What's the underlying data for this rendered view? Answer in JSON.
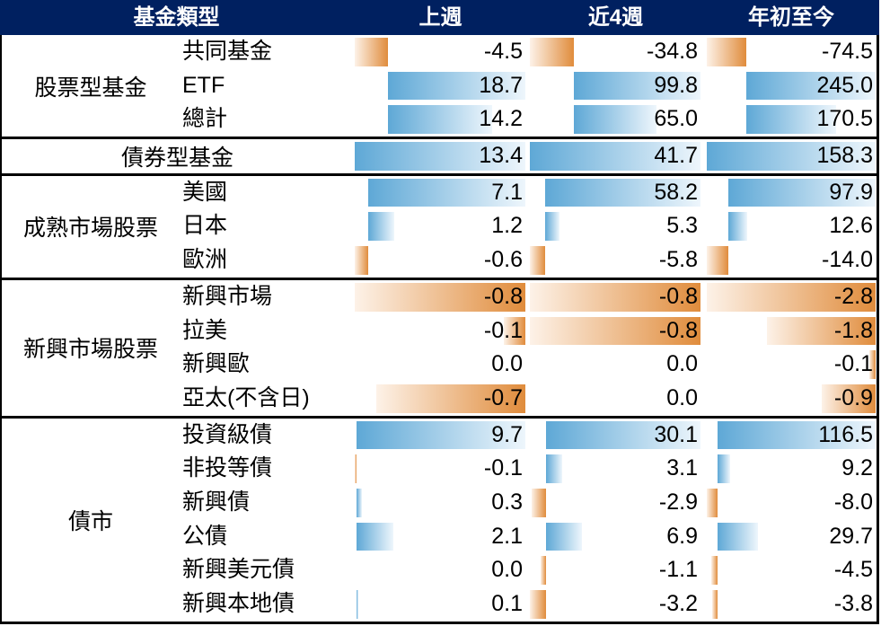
{
  "header": {
    "fund_type": "基金類型"
  },
  "colors": {
    "header_bg": "#002060",
    "header_text": "#ffffff",
    "positive_bar": "#5ea8d6",
    "negative_bar": "#e08c3c",
    "border": "#000000"
  },
  "chart_data": {
    "type": "table",
    "columns": [
      "上週",
      "近4週",
      "年初至今"
    ],
    "groups": [
      {
        "name": "股票型基金",
        "rows": [
          {
            "label": "共同基金",
            "values": [
              "-4.5",
              "-34.8",
              "-74.5"
            ]
          },
          {
            "label": "ETF",
            "values": [
              "18.7",
              "99.8",
              "245.0"
            ]
          },
          {
            "label": "總計",
            "values": [
              "14.2",
              "65.0",
              "170.5"
            ]
          }
        ]
      },
      {
        "name": "債券型基金",
        "rows": [
          {
            "values": [
              "13.4",
              "41.7",
              "158.3"
            ]
          }
        ]
      },
      {
        "name": "成熟市場股票",
        "rows": [
          {
            "label": "美國",
            "values": [
              "7.1",
              "58.2",
              "97.9"
            ]
          },
          {
            "label": "日本",
            "values": [
              "1.2",
              "5.3",
              "12.6"
            ]
          },
          {
            "label": "歐洲",
            "values": [
              "-0.6",
              "-5.8",
              "-14.0"
            ]
          }
        ]
      },
      {
        "name": "新興市場股票",
        "rows": [
          {
            "label": "新興市場",
            "values": [
              "-0.8",
              "-0.8",
              "-2.8"
            ]
          },
          {
            "label": "拉美",
            "values": [
              "-0.1",
              "-0.8",
              "-1.8"
            ]
          },
          {
            "label": "新興歐",
            "values": [
              "0.0",
              "0.0",
              "-0.1"
            ]
          },
          {
            "label": "亞太(不含日)",
            "values": [
              "-0.7",
              "0.0",
              "-0.9"
            ]
          }
        ]
      },
      {
        "name": "債市",
        "rows": [
          {
            "label": "投資級債",
            "values": [
              "9.7",
              "30.1",
              "116.5"
            ]
          },
          {
            "label": "非投等債",
            "values": [
              "-0.1",
              "3.1",
              "9.2"
            ]
          },
          {
            "label": "新興債",
            "values": [
              "0.3",
              "-2.9",
              "-8.0"
            ]
          },
          {
            "label": "公債",
            "values": [
              "2.1",
              "6.9",
              "29.7"
            ]
          },
          {
            "label": "新興美元債",
            "values": [
              "0.0",
              "-1.1",
              "-4.5"
            ]
          },
          {
            "label": "新興本地債",
            "values": [
              "0.1",
              "-3.2",
              "-3.8"
            ]
          }
        ]
      }
    ]
  }
}
